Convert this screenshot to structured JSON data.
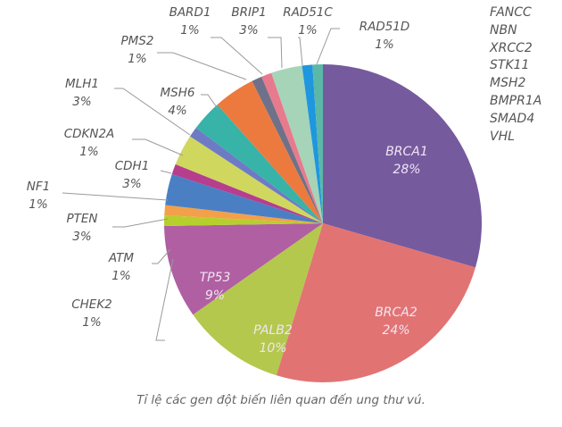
{
  "chart_data": {
    "type": "pie",
    "title": "",
    "caption": "Tỉ lệ các gen đột biến liên quan đến ung thư vú.",
    "start_angle_deg": 0,
    "direction": "clockwise",
    "slices": [
      {
        "label": "BRCA1",
        "value": 28,
        "pct": "28%",
        "color": "#765a9e",
        "label_inside": true
      },
      {
        "label": "BRCA2",
        "value": 24,
        "pct": "24%",
        "color": "#e27373",
        "label_inside": true
      },
      {
        "label": "PALB2",
        "value": 10,
        "pct": "10%",
        "color": "#b4c84e",
        "label_inside": true
      },
      {
        "label": "TP53",
        "value": 9,
        "pct": "9%",
        "color": "#b05fa2",
        "label_inside": true
      },
      {
        "label": "CHEK2",
        "value": 1,
        "pct": "1%",
        "color": "#b6cf2d",
        "label_inside": false
      },
      {
        "label": "ATM",
        "value": 1,
        "pct": "1%",
        "color": "#f3a04a",
        "label_inside": false
      },
      {
        "label": "PTEN",
        "value": 3,
        "pct": "3%",
        "color": "#4a7fc4",
        "label_inside": false
      },
      {
        "label": "NF1",
        "value": 1,
        "pct": "1%",
        "color": "#b63e8e",
        "label_inside": false
      },
      {
        "label": "CDH1",
        "value": 3,
        "pct": "3%",
        "color": "#d0d75e",
        "label_inside": false
      },
      {
        "label": "CDKN2A",
        "value": 1,
        "pct": "1%",
        "color": "#6e7bc4",
        "label_inside": false
      },
      {
        "label": "MLH1",
        "value": 3,
        "pct": "3%",
        "color": "#37b3a8",
        "label_inside": false
      },
      {
        "label": "MSH6",
        "value": 4,
        "pct": "4%",
        "color": "#ec7a3e",
        "label_inside": false
      },
      {
        "label": "PMS2",
        "value": 1,
        "pct": "1%",
        "color": "#6e7189",
        "label_inside": false
      },
      {
        "label": "BARD1",
        "value": 1,
        "pct": "1%",
        "color": "#e87a8d",
        "label_inside": false
      },
      {
        "label": "BRIP1",
        "value": 3,
        "pct": "3%",
        "color": "#a6d4b8",
        "label_inside": false
      },
      {
        "label": "RAD51C",
        "value": 1,
        "pct": "1%",
        "color": "#1f97de",
        "label_inside": false
      },
      {
        "label": "RAD51D",
        "value": 1,
        "pct": "1%",
        "color": "#5bb8a7",
        "label_inside": false
      }
    ],
    "other_genes_unlabeled_pct": [
      "FANCC",
      "NBN",
      "XRCC2",
      "STK11",
      "MSH2",
      "BMPR1A",
      "SMAD4",
      "VHL"
    ],
    "legend": "none",
    "value_format": "percent"
  },
  "other_genes": [
    "FANCC",
    "NBN",
    "XRCC2",
    "STK11",
    "MSH2",
    "BMPR1A",
    "SMAD4",
    "VHL"
  ],
  "caption": "Tỉ lệ các gen đột biến liên quan đến ung thư vú."
}
